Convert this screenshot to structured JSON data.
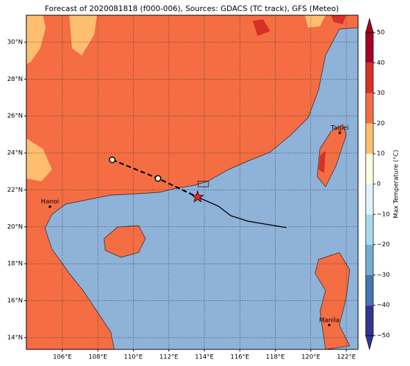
{
  "chart_data": {
    "type": "map",
    "title": "Forecast of 2020081818 (f000-006), Sources: GDACS (TC track), GFS (Meteo)",
    "xlim": [
      103.97,
      122.66
    ],
    "ylim": [
      13.36,
      31.46
    ],
    "xticks": [
      {
        "value": 106,
        "label": "106°E"
      },
      {
        "value": 108,
        "label": "108°E"
      },
      {
        "value": 110,
        "label": "110°E"
      },
      {
        "value": 112,
        "label": "112°E"
      },
      {
        "value": 114,
        "label": "114°E"
      },
      {
        "value": 116,
        "label": "116°E"
      },
      {
        "value": 118,
        "label": "118°E"
      },
      {
        "value": 120,
        "label": "120°E"
      },
      {
        "value": 122,
        "label": "122°E"
      }
    ],
    "yticks": [
      {
        "value": 14,
        "label": "14°N"
      },
      {
        "value": 16,
        "label": "16°N"
      },
      {
        "value": 18,
        "label": "18°N"
      },
      {
        "value": 20,
        "label": "20°N"
      },
      {
        "value": 22,
        "label": "22°N"
      },
      {
        "value": 24,
        "label": "24°N"
      },
      {
        "value": 26,
        "label": "26°N"
      },
      {
        "value": 28,
        "label": "28°N"
      },
      {
        "value": 30,
        "label": "30°N"
      }
    ],
    "grid": true,
    "colorbar": {
      "label": "Max Temperature (°C)",
      "lim": [
        -50,
        50
      ],
      "ticks": [
        {
          "value": -50,
          "label": "−50"
        },
        {
          "value": -40,
          "label": "−40"
        },
        {
          "value": -30,
          "label": "−30"
        },
        {
          "value": -20,
          "label": "−20"
        },
        {
          "value": -10,
          "label": "−10"
        },
        0,
        10,
        20,
        30,
        40,
        50
      ],
      "colors": [
        "#313695",
        "#4575b4",
        "#74add1",
        "#abd9e9",
        "#e0f3f8",
        "#fefee0",
        "#fdbe70",
        "#f46d43",
        "#d73027",
        "#a50026"
      ]
    },
    "cities": [
      {
        "name": "Hanoi",
        "lon": 105.3,
        "lat": 21.09
      },
      {
        "name": "Taipei",
        "lon": 121.63,
        "lat": 25.09
      },
      {
        "name": "Manila",
        "lon": 121.04,
        "lat": 14.68
      }
    ],
    "track": {
      "lon": [
        108.81,
        111.39,
        113.62
      ],
      "lat": [
        23.63,
        22.62,
        21.61
      ]
    },
    "forecast": {
      "lon": [
        113.62,
        114.79,
        115.49,
        116.47,
        118.62
      ],
      "lat": [
        21.61,
        21.12,
        20.6,
        20.3,
        19.96
      ]
    }
  }
}
